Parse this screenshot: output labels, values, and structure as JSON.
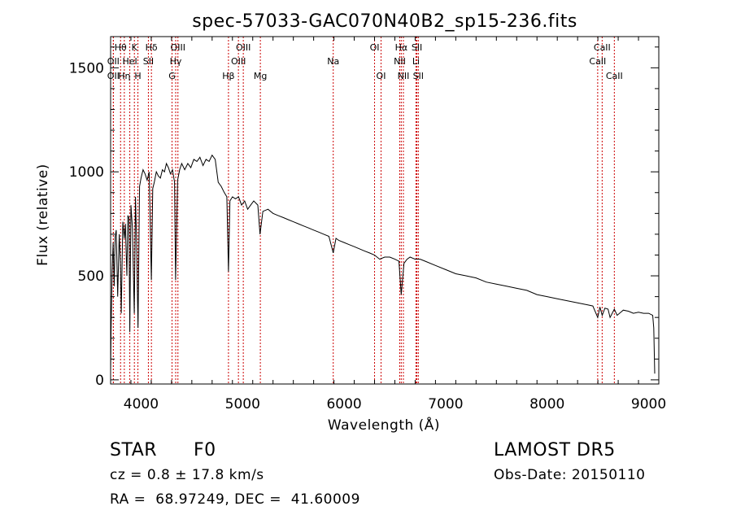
{
  "chart_data": {
    "type": "line",
    "title": "spec-57033-GAC070N40B2_sp15-236.fits",
    "xlabel": "Wavelength (Å)",
    "ylabel": "Flux (relative)",
    "xlim": [
      3700,
      9100
    ],
    "ylim": [
      -20,
      1650
    ],
    "xticks": [
      4000,
      5000,
      6000,
      7000,
      8000,
      9000
    ],
    "yticks": [
      0,
      500,
      1000,
      1500
    ],
    "line_color": "#000000",
    "marker_color": "#cc0000",
    "grid": false,
    "series": [
      {
        "x": [
          3700,
          3705,
          3715,
          3725,
          3735,
          3745,
          3755,
          3770,
          3785,
          3797,
          3805,
          3820,
          3835,
          3845,
          3860,
          3870,
          3880,
          3889,
          3900,
          3915,
          3933,
          3945,
          3955,
          3970,
          3985,
          4000,
          4020,
          4040,
          4060,
          4080,
          4101,
          4115,
          4130,
          4150,
          4170,
          4190,
          4210,
          4230,
          4250,
          4270,
          4290,
          4310,
          4330,
          4340,
          4360,
          4380,
          4400,
          4430,
          4460,
          4490,
          4520,
          4550,
          4580,
          4610,
          4640,
          4670,
          4700,
          4730,
          4760,
          4790,
          4820,
          4845,
          4861,
          4875,
          4900,
          4930,
          4960,
          4990,
          5020,
          5050,
          5080,
          5110,
          5150,
          5172,
          5200,
          5250,
          5300,
          5350,
          5400,
          5450,
          5500,
          5550,
          5600,
          5650,
          5700,
          5750,
          5800,
          5850,
          5893,
          5920,
          5950,
          6000,
          6050,
          6100,
          6150,
          6200,
          6250,
          6300,
          6350,
          6400,
          6450,
          6500,
          6540,
          6563,
          6590,
          6620,
          6650,
          6700,
          6750,
          6800,
          6900,
          7000,
          7100,
          7200,
          7300,
          7400,
          7500,
          7600,
          7700,
          7800,
          7900,
          8000,
          8100,
          8200,
          8300,
          8400,
          8450,
          8498,
          8520,
          8542,
          8570,
          8600,
          8620,
          8662,
          8690,
          8750,
          8800,
          8850,
          8900,
          8950,
          9000,
          9040,
          9050,
          9060
        ],
        "y": [
          40,
          250,
          520,
          660,
          450,
          690,
          720,
          400,
          700,
          560,
          320,
          760,
          680,
          750,
          500,
          790,
          780,
          230,
          840,
          730,
          320,
          880,
          690,
          250,
          930,
          970,
          1010,
          990,
          960,
          1000,
          480,
          920,
          950,
          1000,
          980,
          970,
          1010,
          1000,
          1040,
          1020,
          990,
          1010,
          950,
          480,
          960,
          1010,
          1040,
          1010,
          1040,
          1020,
          1060,
          1050,
          1070,
          1030,
          1060,
          1050,
          1080,
          1060,
          950,
          930,
          900,
          880,
          520,
          860,
          880,
          870,
          880,
          840,
          860,
          820,
          840,
          860,
          840,
          700,
          810,
          820,
          800,
          790,
          780,
          770,
          760,
          750,
          740,
          730,
          720,
          710,
          700,
          690,
          610,
          680,
          670,
          660,
          650,
          640,
          630,
          620,
          610,
          600,
          580,
          590,
          590,
          580,
          570,
          410,
          560,
          580,
          590,
          580,
          580,
          570,
          550,
          530,
          510,
          500,
          490,
          470,
          460,
          450,
          440,
          430,
          410,
          400,
          390,
          380,
          370,
          360,
          355,
          300,
          350,
          310,
          345,
          340,
          300,
          340,
          310,
          335,
          330,
          320,
          325,
          320,
          320,
          310,
          250,
          30
        ]
      }
    ],
    "lines": [
      {
        "name": "Hθ",
        "wavelength": 3798,
        "row": 1
      },
      {
        "name": "OII",
        "wavelength": 3727,
        "row": 2
      },
      {
        "name": "OII",
        "wavelength": 3727,
        "row": 3
      },
      {
        "name": "K",
        "wavelength": 3934,
        "row": 1
      },
      {
        "name": "HeI",
        "wavelength": 3889,
        "row": 2
      },
      {
        "name": "Hη",
        "wavelength": 3835,
        "row": 3
      },
      {
        "name": "Hδ",
        "wavelength": 4102,
        "row": 1
      },
      {
        "name": "SII",
        "wavelength": 4072,
        "row": 2
      },
      {
        "name": "H",
        "wavelength": 3969,
        "row": 3
      },
      {
        "name": "OIII",
        "wavelength": 4363,
        "row": 1
      },
      {
        "name": "Hγ",
        "wavelength": 4341,
        "row": 2
      },
      {
        "name": "G",
        "wavelength": 4305,
        "row": 3
      },
      {
        "name": "OIII",
        "wavelength": 5007,
        "row": 1
      },
      {
        "name": "OIII",
        "wavelength": 4959,
        "row": 2
      },
      {
        "name": "Hβ",
        "wavelength": 4861,
        "row": 3
      },
      {
        "name": "Mg",
        "wavelength": 5175,
        "row": 3
      },
      {
        "name": "Na",
        "wavelength": 5893,
        "row": 2
      },
      {
        "name": "OI",
        "wavelength": 6300,
        "row": 1
      },
      {
        "name": "OI",
        "wavelength": 6364,
        "row": 3
      },
      {
        "name": "Hα",
        "wavelength": 6563,
        "row": 1
      },
      {
        "name": "SII",
        "wavelength": 6717,
        "row": 1
      },
      {
        "name": "NII",
        "wavelength": 6548,
        "row": 2
      },
      {
        "name": "Li",
        "wavelength": 6708,
        "row": 2
      },
      {
        "name": "NII",
        "wavelength": 6584,
        "row": 3
      },
      {
        "name": "SII",
        "wavelength": 6731,
        "row": 3
      },
      {
        "name": "CaII",
        "wavelength": 8542,
        "row": 1
      },
      {
        "name": "CaII",
        "wavelength": 8498,
        "row": 2
      },
      {
        "name": "CaII",
        "wavelength": 8662,
        "row": 3
      }
    ]
  },
  "info": {
    "object_class": "STAR",
    "subclass": "F0",
    "survey": "LAMOST DR5",
    "cz": "cz = 0.8 ± 17.8 km/s",
    "obs_date": "Obs-Date: 20150110",
    "coords": "RA =  68.97249, DEC =  41.60009"
  }
}
